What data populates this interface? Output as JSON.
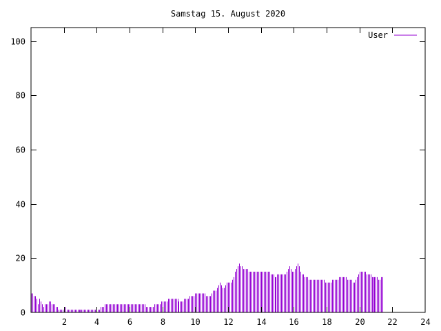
{
  "colors": {
    "series": "#9400d3",
    "axis": "#000000",
    "background": "#ffffff"
  },
  "chart_data": {
    "type": "bar",
    "title": "Samstag 15. August 2020",
    "xlabel": "",
    "ylabel": "",
    "xlim": [
      0,
      24
    ],
    "ylim": [
      0,
      105
    ],
    "grid": false,
    "legend": "top-right",
    "x_ticks": [
      {
        "v": 2,
        "label": "2"
      },
      {
        "v": 4,
        "label": "4"
      },
      {
        "v": 6,
        "label": "6"
      },
      {
        "v": 8,
        "label": "8"
      },
      {
        "v": 10,
        "label": "10"
      },
      {
        "v": 12,
        "label": "12"
      },
      {
        "v": 14,
        "label": "14"
      },
      {
        "v": 16,
        "label": "16"
      },
      {
        "v": 18,
        "label": "18"
      },
      {
        "v": 20,
        "label": "20"
      },
      {
        "v": 22,
        "label": "22"
      },
      {
        "v": 24,
        "label": "24"
      }
    ],
    "y_ticks": [
      {
        "v": 0,
        "label": "0"
      },
      {
        "v": 20,
        "label": "20"
      },
      {
        "v": 40,
        "label": "40"
      },
      {
        "v": 60,
        "label": "60"
      },
      {
        "v": 80,
        "label": "80"
      },
      {
        "v": 100,
        "label": "100"
      }
    ],
    "series": [
      {
        "name": "User",
        "x_start": 0,
        "x_step": 0.08333,
        "values": [
          7,
          7,
          6,
          6,
          5,
          3,
          5,
          4,
          3,
          2,
          3,
          3,
          3,
          4,
          4,
          3,
          3,
          3,
          2,
          2,
          1,
          1,
          1,
          1,
          2,
          2,
          1,
          1,
          1,
          1,
          1,
          1,
          1,
          1,
          1,
          1,
          1,
          1,
          1,
          1,
          1,
          1,
          1,
          1,
          1,
          1,
          1,
          1,
          1,
          1,
          1,
          2,
          2,
          2,
          3,
          3,
          3,
          3,
          3,
          3,
          3,
          3,
          3,
          3,
          3,
          3,
          3,
          3,
          3,
          3,
          3,
          3,
          3,
          3,
          3,
          3,
          3,
          3,
          3,
          3,
          3,
          3,
          3,
          3,
          2,
          2,
          2,
          2,
          2,
          2,
          3,
          3,
          3,
          3,
          3,
          4,
          4,
          4,
          4,
          4,
          5,
          5,
          5,
          5,
          5,
          5,
          5,
          5,
          4,
          4,
          4,
          4,
          5,
          5,
          5,
          5,
          6,
          6,
          6,
          6,
          7,
          7,
          7,
          7,
          7,
          7,
          7,
          7,
          6,
          6,
          6,
          6,
          7,
          8,
          8,
          8,
          9,
          10,
          11,
          10,
          9,
          9,
          10,
          11,
          11,
          11,
          11,
          12,
          13,
          15,
          16,
          17,
          18,
          17,
          17,
          16,
          16,
          16,
          16,
          15,
          15,
          15,
          15,
          15,
          15,
          15,
          15,
          15,
          15,
          15,
          15,
          15,
          15,
          15,
          15,
          14,
          14,
          14,
          13,
          13,
          14,
          14,
          14,
          14,
          14,
          14,
          14,
          15,
          16,
          17,
          16,
          15,
          15,
          16,
          17,
          18,
          17,
          15,
          14,
          14,
          13,
          13,
          13,
          12,
          12,
          12,
          12,
          12,
          12,
          12,
          12,
          12,
          12,
          12,
          12,
          11,
          11,
          11,
          11,
          11,
          12,
          12,
          12,
          12,
          12,
          13,
          13,
          13,
          13,
          13,
          13,
          12,
          12,
          12,
          12,
          11,
          11,
          12,
          13,
          14,
          15,
          15,
          15,
          15,
          15,
          14,
          14,
          14,
          14,
          13,
          13,
          13,
          13,
          13,
          12,
          12,
          13,
          13
        ]
      }
    ]
  }
}
